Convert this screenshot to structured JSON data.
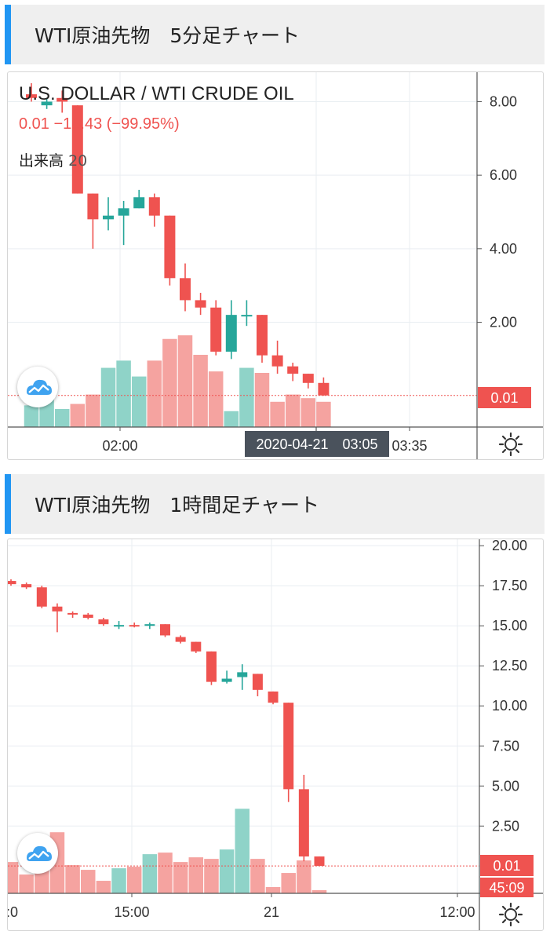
{
  "sections": [
    {
      "title": "WTI原油先物　5分足チャート"
    },
    {
      "title": "WTI原油先物　1時間足チャート"
    }
  ],
  "colors": {
    "up": "#26a69a",
    "down": "#ef5350",
    "up_vol": "#8fd3c8",
    "down_vol": "#f5a3a0",
    "accent": "#2196f3"
  },
  "chart_data": [
    {
      "type": "candlestick",
      "title": "U.S. DOLLAR / WTI CRUDE OIL",
      "legend": {
        "ohlc_text": "0.01 −18.43 (−99.95%)",
        "volume_label": "出来高",
        "volume_value": "20"
      },
      "y_ticks": [
        "8.00",
        "6.00",
        "4.00",
        "2.00"
      ],
      "ylim": [
        -0.85,
        8.8
      ],
      "x_ticks": [
        "02:00",
        "03:35"
      ],
      "crosshair_label": "2020-04-21　03:05",
      "last_price_label": "0.01",
      "last_price": 0.01,
      "candles": [
        {
          "o": 8.2,
          "h": 8.5,
          "l": 8.0,
          "c": 8.1
        },
        {
          "o": 7.9,
          "h": 8.1,
          "l": 7.8,
          "c": 8.0
        },
        {
          "o": 8.1,
          "h": 8.3,
          "l": 7.7,
          "c": 8.0
        },
        {
          "o": 7.9,
          "h": 7.9,
          "l": 5.5,
          "c": 5.5
        },
        {
          "o": 5.5,
          "h": 5.5,
          "l": 4.0,
          "c": 4.8
        },
        {
          "o": 4.8,
          "h": 5.4,
          "l": 4.5,
          "c": 4.9
        },
        {
          "o": 4.9,
          "h": 5.3,
          "l": 4.1,
          "c": 5.1
        },
        {
          "o": 5.1,
          "h": 5.6,
          "l": 5.1,
          "c": 5.4
        },
        {
          "o": 5.4,
          "h": 5.5,
          "l": 4.6,
          "c": 4.9
        },
        {
          "o": 4.9,
          "h": 4.9,
          "l": 3.0,
          "c": 3.2
        },
        {
          "o": 3.2,
          "h": 3.6,
          "l": 2.3,
          "c": 2.6
        },
        {
          "o": 2.6,
          "h": 2.8,
          "l": 2.2,
          "c": 2.4
        },
        {
          "o": 2.4,
          "h": 2.6,
          "l": 1.1,
          "c": 1.2
        },
        {
          "o": 1.2,
          "h": 2.6,
          "l": 1.0,
          "c": 2.2
        },
        {
          "o": 2.2,
          "h": 2.6,
          "l": 1.9,
          "c": 2.2
        },
        {
          "o": 2.2,
          "h": 2.2,
          "l": 0.9,
          "c": 1.1
        },
        {
          "o": 1.1,
          "h": 1.5,
          "l": 0.6,
          "c": 0.8
        },
        {
          "o": 0.8,
          "h": 0.9,
          "l": 0.4,
          "c": 0.6
        },
        {
          "o": 0.6,
          "h": 0.6,
          "l": 0.2,
          "c": 0.35
        },
        {
          "o": 0.35,
          "h": 0.5,
          "l": 0.0,
          "c": 0.01
        }
      ],
      "volumes": [
        {
          "v": 0.3,
          "up": true
        },
        {
          "v": 0.4,
          "up": true
        },
        {
          "v": 0.25,
          "up": true
        },
        {
          "v": 0.32,
          "up": false
        },
        {
          "v": 0.45,
          "up": false
        },
        {
          "v": 0.82,
          "up": true
        },
        {
          "v": 0.92,
          "up": true
        },
        {
          "v": 0.7,
          "up": true
        },
        {
          "v": 0.92,
          "up": false
        },
        {
          "v": 1.22,
          "up": false
        },
        {
          "v": 1.27,
          "up": false
        },
        {
          "v": 1.0,
          "up": false
        },
        {
          "v": 0.77,
          "up": false
        },
        {
          "v": 0.22,
          "up": true
        },
        {
          "v": 0.82,
          "up": true
        },
        {
          "v": 0.75,
          "up": false
        },
        {
          "v": 0.35,
          "up": false
        },
        {
          "v": 0.45,
          "up": false
        },
        {
          "v": 0.4,
          "up": false
        },
        {
          "v": 0.35,
          "up": false
        }
      ]
    },
    {
      "type": "candlestick",
      "title": "",
      "y_ticks": [
        "20.00",
        "17.50",
        "15.00",
        "12.50",
        "10.00",
        "7.50",
        "5.00",
        "2.50"
      ],
      "ylim": [
        -1.7,
        20.4
      ],
      "x_ticks": [
        ":0",
        "15:00",
        "21",
        "12:00"
      ],
      "last_price_label": "0.01",
      "last_price": 0.01,
      "countdown_label": "45:09",
      "candles": [
        {
          "o": 17.8,
          "h": 17.9,
          "l": 17.5,
          "c": 17.6
        },
        {
          "o": 17.6,
          "h": 17.7,
          "l": 17.3,
          "c": 17.4
        },
        {
          "o": 17.4,
          "h": 17.5,
          "l": 16.1,
          "c": 16.2
        },
        {
          "o": 16.2,
          "h": 16.4,
          "l": 14.6,
          "c": 15.9
        },
        {
          "o": 15.8,
          "h": 15.9,
          "l": 15.5,
          "c": 15.7
        },
        {
          "o": 15.7,
          "h": 15.8,
          "l": 15.4,
          "c": 15.5
        },
        {
          "o": 15.4,
          "h": 15.5,
          "l": 15.0,
          "c": 15.1
        },
        {
          "o": 15.0,
          "h": 15.3,
          "l": 14.8,
          "c": 15.05
        },
        {
          "o": 15.05,
          "h": 15.2,
          "l": 14.9,
          "c": 15.0
        },
        {
          "o": 15.0,
          "h": 15.2,
          "l": 14.8,
          "c": 15.1
        },
        {
          "o": 15.1,
          "h": 15.1,
          "l": 14.3,
          "c": 14.4
        },
        {
          "o": 14.3,
          "h": 14.4,
          "l": 13.9,
          "c": 14.0
        },
        {
          "o": 14.0,
          "h": 14.0,
          "l": 13.3,
          "c": 13.4
        },
        {
          "o": 13.4,
          "h": 13.4,
          "l": 11.3,
          "c": 11.5
        },
        {
          "o": 11.5,
          "h": 12.2,
          "l": 11.4,
          "c": 11.7
        },
        {
          "o": 11.8,
          "h": 12.6,
          "l": 11.0,
          "c": 12.1
        },
        {
          "o": 12.0,
          "h": 12.0,
          "l": 10.6,
          "c": 11.0
        },
        {
          "o": 10.9,
          "h": 10.9,
          "l": 10.1,
          "c": 10.2
        },
        {
          "o": 10.2,
          "h": 10.2,
          "l": 4.0,
          "c": 4.8
        },
        {
          "o": 4.8,
          "h": 5.7,
          "l": 0.3,
          "c": 0.6
        },
        {
          "o": 0.6,
          "h": 0.6,
          "l": 0.0,
          "c": 0.01
        }
      ],
      "volumes": [
        {
          "v": 2.0,
          "up": false
        },
        {
          "v": 1.2,
          "up": false
        },
        {
          "v": 1.7,
          "up": false
        },
        {
          "v": 3.9,
          "up": false
        },
        {
          "v": 1.8,
          "up": false
        },
        {
          "v": 1.5,
          "up": false
        },
        {
          "v": 0.8,
          "up": false
        },
        {
          "v": 1.6,
          "up": true
        },
        {
          "v": 1.7,
          "up": false
        },
        {
          "v": 2.5,
          "up": true
        },
        {
          "v": 2.6,
          "up": false
        },
        {
          "v": 2.0,
          "up": false
        },
        {
          "v": 2.3,
          "up": false
        },
        {
          "v": 2.2,
          "up": false
        },
        {
          "v": 2.8,
          "up": true
        },
        {
          "v": 5.4,
          "up": true
        },
        {
          "v": 2.2,
          "up": false
        },
        {
          "v": 0.4,
          "up": false
        },
        {
          "v": 1.3,
          "up": false
        },
        {
          "v": 2.1,
          "up": false
        },
        {
          "v": 0.2,
          "up": false
        }
      ]
    }
  ]
}
